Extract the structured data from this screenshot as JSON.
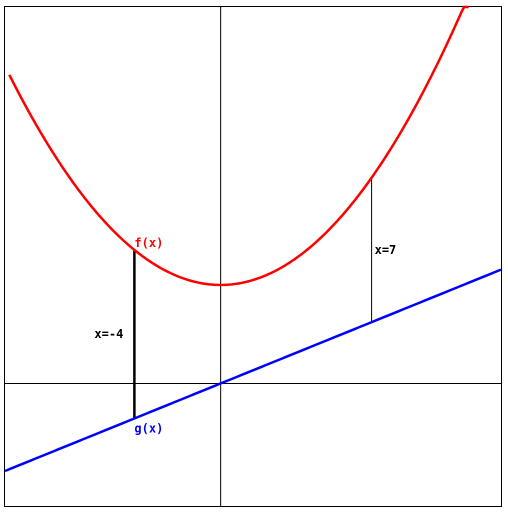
{
  "chart_data": {
    "type": "line",
    "title": "",
    "xlabel": "",
    "ylabel": "",
    "xlim": [
      -10,
      13
    ],
    "ylim": [
      -5.6,
      17.2
    ],
    "grid": false,
    "axes_through_origin": true,
    "series": [
      {
        "name": "f(x)",
        "color": "#ff0000",
        "kind": "quadratic",
        "coefficients": {
          "a": 0.1,
          "b": 0.0,
          "c": 4.5
        },
        "x_range": [
          -9.8,
          11.5
        ]
      },
      {
        "name": "g(x)",
        "color": "#0000ff",
        "kind": "linear",
        "coefficients": {
          "slope": 0.4,
          "intercept": 0.0
        },
        "x_range": [
          -10,
          13
        ]
      }
    ],
    "annotations": [
      {
        "text": "x=-4",
        "x": -4,
        "style": "thick"
      },
      {
        "text": "x=7",
        "x": 7,
        "style": "thin"
      }
    ]
  }
}
